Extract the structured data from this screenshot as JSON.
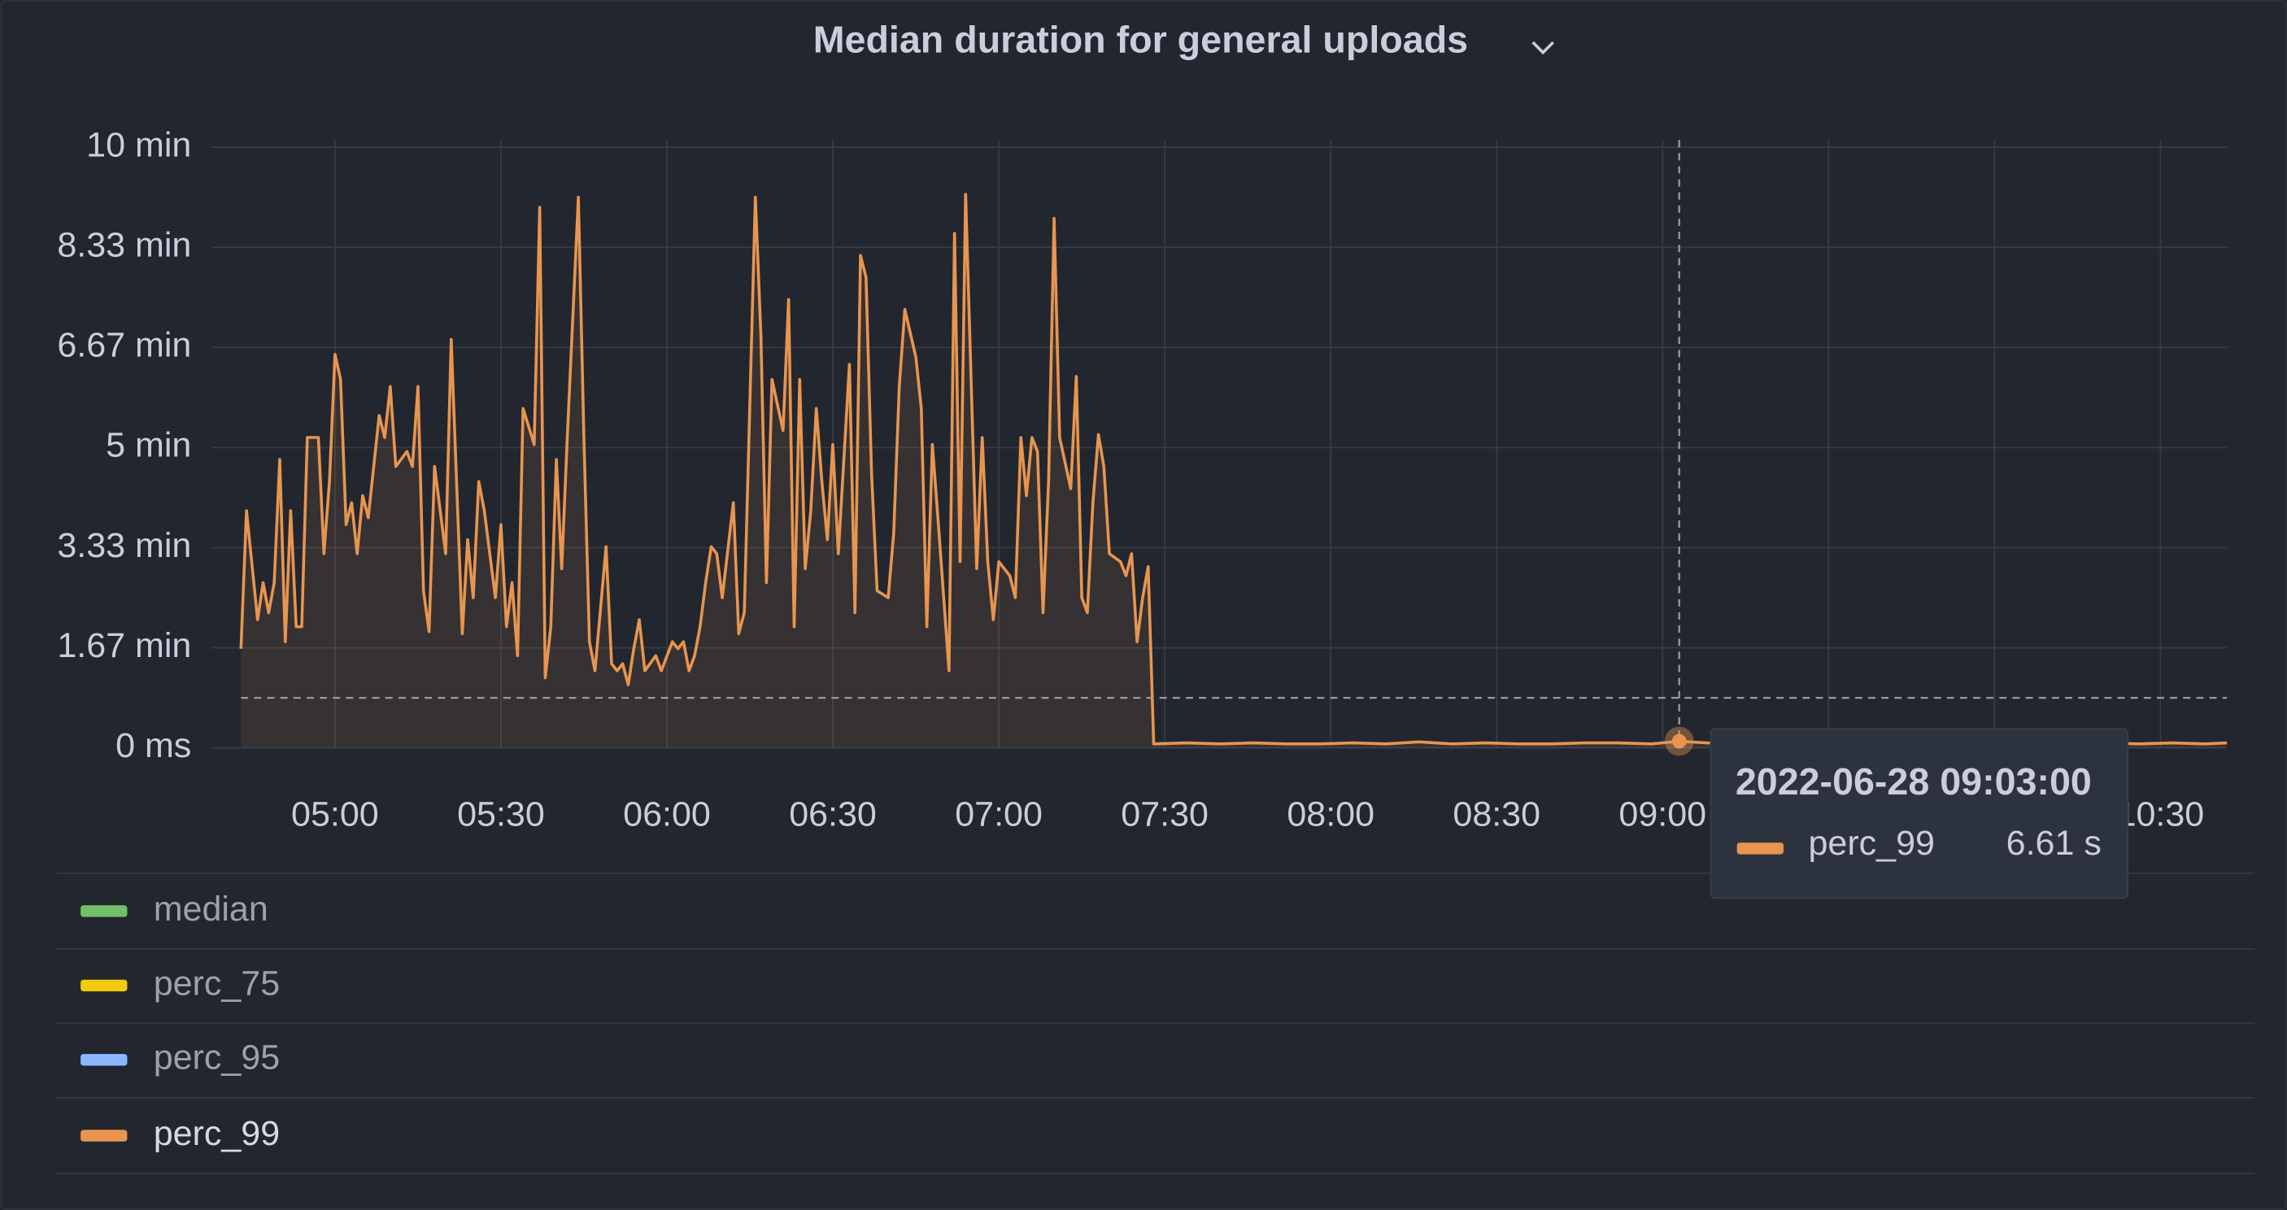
{
  "chart_data": {
    "type": "line",
    "title": "Median duration for general uploads",
    "xlim": [
      283,
      642
    ],
    "ylim": [
      0,
      600
    ],
    "xticks": [
      {
        "value": 300,
        "label": "05:00"
      },
      {
        "value": 330,
        "label": "05:30"
      },
      {
        "value": 360,
        "label": "06:00"
      },
      {
        "value": 390,
        "label": "06:30"
      },
      {
        "value": 420,
        "label": "07:00"
      },
      {
        "value": 450,
        "label": "07:30"
      },
      {
        "value": 480,
        "label": "08:00"
      },
      {
        "value": 510,
        "label": "08:30"
      },
      {
        "value": 540,
        "label": "09:00"
      },
      {
        "value": 570,
        "label": "09:30"
      },
      {
        "value": 600,
        "label": "10:00"
      },
      {
        "value": 630,
        "label": "10:30"
      }
    ],
    "yticks": [
      {
        "value": 0,
        "label": "0 ms"
      },
      {
        "value": 100,
        "label": "1.67 min"
      },
      {
        "value": 200,
        "label": "3.33 min"
      },
      {
        "value": 300,
        "label": "5 min"
      },
      {
        "value": 400,
        "label": "6.67 min"
      },
      {
        "value": 500,
        "label": "8.33 min"
      },
      {
        "value": 600,
        "label": "10 min"
      }
    ],
    "grid": true,
    "series": [
      {
        "name": "perc_99",
        "color": "#e8954f",
        "x": [
          283,
          284,
          286,
          287,
          288,
          289,
          290,
          291,
          292,
          293,
          294,
          295,
          297,
          298,
          299,
          300,
          301,
          302,
          303,
          304,
          305,
          306,
          308,
          309,
          310,
          311,
          313,
          314,
          315,
          316,
          317,
          318,
          320,
          321,
          323,
          324,
          325,
          326,
          327,
          329,
          330,
          331,
          332,
          333,
          334,
          336,
          337,
          338,
          339,
          340,
          341,
          342,
          344,
          345,
          346,
          347,
          349,
          350,
          351,
          352,
          353,
          354,
          355,
          356,
          358,
          359,
          361,
          362,
          363,
          364,
          365,
          366,
          367,
          368,
          369,
          370,
          372,
          373,
          374,
          376,
          377,
          378,
          379,
          381,
          382,
          383,
          384,
          385,
          386,
          387,
          388,
          389,
          390,
          391,
          393,
          394,
          395,
          396,
          397,
          398,
          400,
          401,
          402,
          403,
          405,
          406,
          407,
          408,
          409,
          411,
          412,
          413,
          414,
          416,
          417,
          418,
          419,
          420,
          422,
          423,
          424,
          425,
          426,
          427,
          428,
          429,
          430,
          431,
          433,
          434,
          435,
          436,
          437,
          438,
          439,
          440,
          442,
          443,
          444,
          445,
          446,
          447,
          448,
          454,
          460,
          466,
          472,
          478,
          484,
          490,
          496,
          502,
          508,
          514,
          520,
          526,
          532,
          538,
          543,
          548,
          554,
          560,
          566,
          572,
          578,
          584,
          590,
          596,
          602,
          608,
          614,
          620,
          626,
          632,
          638,
          642
        ],
        "values": [
          99,
          237,
          128,
          165,
          135,
          165,
          288,
          106,
          237,
          121,
          121,
          310,
          310,
          194,
          266,
          393,
          368,
          223,
          245,
          194,
          252,
          230,
          332,
          310,
          361,
          281,
          296,
          281,
          361,
          157,
          116,
          281,
          194,
          408,
          114,
          208,
          150,
          266,
          237,
          150,
          223,
          121,
          165,
          92,
          339,
          303,
          540,
          70,
          121,
          288,
          179,
          310,
          550,
          310,
          106,
          77,
          201,
          84,
          77,
          84,
          63,
          99,
          128,
          77,
          92,
          77,
          106,
          99,
          106,
          77,
          92,
          121,
          165,
          201,
          194,
          150,
          245,
          114,
          135,
          550,
          412,
          165,
          368,
          317,
          448,
          121,
          368,
          179,
          237,
          339,
          266,
          208,
          303,
          194,
          383,
          135,
          492,
          470,
          274,
          157,
          150,
          215,
          361,
          438,
          390,
          339,
          121,
          303,
          230,
          77,
          514,
          186,
          553,
          179,
          310,
          186,
          128,
          186,
          172,
          150,
          310,
          252,
          310,
          296,
          135,
          266,
          529,
          310,
          259,
          371,
          150,
          135,
          245,
          313,
          281,
          194,
          186,
          172,
          194,
          106,
          150,
          181,
          4,
          5,
          4,
          5,
          4,
          4,
          5,
          4,
          6,
          4,
          5,
          4,
          4,
          5,
          5,
          4,
          6.61,
          5,
          4,
          5,
          4,
          5,
          4,
          4,
          5,
          4,
          4,
          5,
          6,
          5,
          4,
          5,
          4,
          5
        ]
      }
    ],
    "legend": [
      {
        "name": "median",
        "color": "#73bf69",
        "hidden": true
      },
      {
        "name": "perc_75",
        "color": "#f2cc0c",
        "hidden": true
      },
      {
        "name": "perc_95",
        "color": "#8ab8ff",
        "hidden": true
      },
      {
        "name": "perc_99",
        "color": "#e8954f",
        "hidden": false
      }
    ],
    "tooltip": {
      "title": "2022-06-28 09:03:00",
      "point": 158,
      "value_label": "6.61 s",
      "cursor_y": 50
    }
  }
}
